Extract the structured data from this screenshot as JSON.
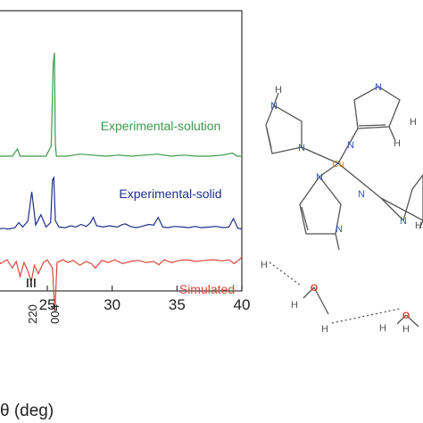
{
  "chart_data": {
    "type": "line",
    "xlabel": "θ (deg)",
    "xlim": [
      20.8,
      40
    ],
    "x_ticks": [
      "25",
      "30",
      "35",
      "40"
    ],
    "x_tick_values": [
      25,
      30,
      35,
      40
    ],
    "series": [
      {
        "name": "Experimental-solution",
        "color": "#3c9a4a",
        "baseline": 0,
        "x": [
          21.0,
          21.6,
          22.3,
          22.7,
          22.9,
          23.4,
          24.0,
          24.5,
          24.9,
          25.3,
          25.45,
          25.55,
          25.62,
          25.7,
          25.9,
          26.5,
          27.5,
          28.5,
          29.5,
          30.5,
          31.5,
          32.5,
          33.5,
          34.5,
          35.5,
          36.5,
          37.5,
          38.5,
          39.3,
          39.6,
          40.0
        ],
        "y": [
          0,
          0,
          0,
          0.07,
          0,
          0,
          0,
          0,
          0,
          0.1,
          0.88,
          1.0,
          0.12,
          0,
          0,
          0,
          0.02,
          0.01,
          0,
          0.01,
          0,
          0.01,
          0.02,
          0,
          0.01,
          0,
          0,
          0.01,
          0.03,
          0,
          0
        ]
      },
      {
        "name": "Experimental-solid",
        "color": "#1f2f8c",
        "baseline": 0,
        "x": [
          21.0,
          21.5,
          22.0,
          22.5,
          22.8,
          23.1,
          23.5,
          23.8,
          24.1,
          24.5,
          24.9,
          25.25,
          25.4,
          25.5,
          25.62,
          25.9,
          26.4,
          26.8,
          27.2,
          27.6,
          28.0,
          28.3,
          28.55,
          28.8,
          29.3,
          29.8,
          30.4,
          30.7,
          31.0,
          31.4,
          31.8,
          32.3,
          32.8,
          33.2,
          33.55,
          33.9,
          34.3,
          34.8,
          35.4,
          35.9,
          36.4,
          36.9,
          37.5,
          38.0,
          38.6,
          39.0,
          39.35,
          39.7,
          40.0
        ],
        "y": [
          0,
          0.03,
          0.02,
          0.04,
          0.12,
          0.05,
          0.14,
          0.6,
          0.08,
          0.24,
          0.05,
          0.12,
          0.78,
          0.82,
          0.15,
          0.05,
          0.04,
          0.07,
          0.05,
          0.09,
          0.06,
          0.11,
          0.2,
          0.07,
          0.05,
          0.07,
          0.05,
          0.08,
          0.1,
          0.06,
          0.04,
          0.06,
          0.09,
          0.08,
          0.2,
          0.05,
          0.04,
          0.06,
          0.05,
          0.04,
          0.06,
          0.04,
          0.05,
          0.06,
          0.04,
          0.05,
          0.18,
          0.03,
          0.02
        ]
      },
      {
        "name": "Simulated",
        "color": "#d9473a",
        "baseline": 0,
        "x": [
          21.0,
          21.4,
          21.9,
          22.3,
          22.6,
          22.9,
          23.2,
          23.5,
          23.75,
          24.0,
          24.3,
          24.7,
          25.0,
          25.4,
          25.58,
          25.75,
          26.2,
          26.6,
          27.0,
          27.5,
          28.0,
          28.4,
          28.7,
          29.2,
          29.7,
          30.2,
          30.8,
          31.4,
          32.0,
          32.6,
          33.2,
          33.6,
          34.0,
          34.6,
          35.2,
          35.8,
          36.5,
          37.2,
          37.8,
          38.5,
          39.0,
          39.4,
          39.8,
          40.0
        ],
        "y": [
          0,
          -0.12,
          -0.05,
          -0.2,
          -0.08,
          -0.35,
          -0.1,
          -0.25,
          -0.45,
          -0.15,
          -0.3,
          -0.1,
          -0.05,
          -0.2,
          -1.0,
          -0.1,
          -0.05,
          -0.1,
          -0.06,
          -0.15,
          -0.08,
          -0.12,
          -0.2,
          -0.06,
          -0.1,
          -0.05,
          -0.12,
          -0.08,
          -0.06,
          -0.1,
          -0.08,
          -0.14,
          -0.05,
          -0.1,
          -0.06,
          -0.05,
          -0.08,
          -0.06,
          -0.05,
          -0.07,
          -0.05,
          -0.12,
          -0.05,
          0
        ]
      }
    ],
    "annotations": [
      {
        "text": "220",
        "x": 23.9
      },
      {
        "text": "004",
        "x": 25.6
      }
    ],
    "legend_placement": "inline labels",
    "grid": false
  },
  "structure": {
    "atoms": [
      {
        "id": "Cu",
        "label": "Cu",
        "color": "#c8751a"
      },
      {
        "id": "N1",
        "label": "N",
        "color": "#3457b5"
      },
      {
        "id": "N2",
        "label": "N",
        "color": "#3457b5"
      },
      {
        "id": "N3",
        "label": "N",
        "color": "#3457b5"
      },
      {
        "id": "N4",
        "label": "N",
        "color": "#3457b5"
      },
      {
        "id": "N5",
        "label": "N",
        "color": "#3457b5"
      },
      {
        "id": "N6",
        "label": "N",
        "color": "#3457b5"
      },
      {
        "id": "N7",
        "label": "N",
        "color": "#3457b5"
      },
      {
        "id": "N8",
        "label": "N",
        "color": "#3457b5"
      },
      {
        "id": "H1",
        "label": "H",
        "color": "#555555"
      },
      {
        "id": "H2",
        "label": "H",
        "color": "#555555"
      },
      {
        "id": "H3",
        "label": "H",
        "color": "#555555"
      },
      {
        "id": "H4",
        "label": "H",
        "color": "#555555"
      },
      {
        "id": "H5",
        "label": "H",
        "color": "#555555"
      },
      {
        "id": "H6",
        "label": "H",
        "color": "#555555"
      },
      {
        "id": "H7",
        "label": "H",
        "color": "#555555"
      },
      {
        "id": "H8",
        "label": "H",
        "color": "#555555"
      },
      {
        "id": "H9",
        "label": "H",
        "color": "#555555"
      },
      {
        "id": "O1",
        "label": "O",
        "color": "#d9473a"
      },
      {
        "id": "O2",
        "label": "O",
        "color": "#d9473a"
      }
    ]
  }
}
